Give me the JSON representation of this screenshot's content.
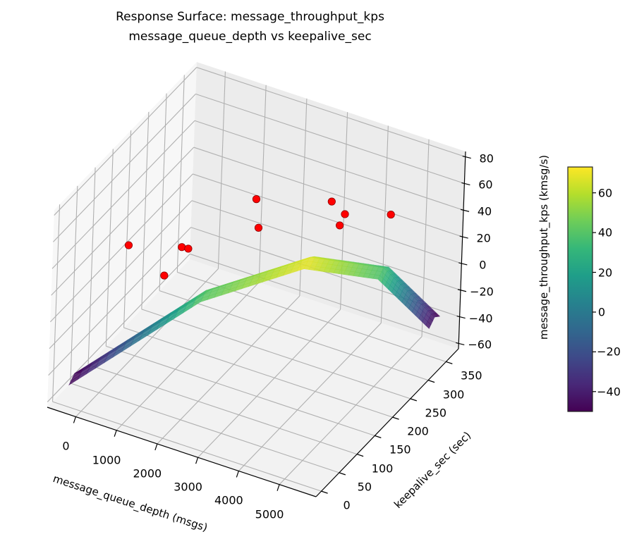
{
  "chart_data": {
    "type": "surface3d",
    "title": "Response Surface: message_throughput_kps",
    "subtitle": "message_queue_depth vs keepalive_sec",
    "xlabel": "message_queue_depth (msgs)",
    "ylabel": "keepalive_sec (sec)",
    "zlabel": "message_throughput_kps (kmsg/s)",
    "xlim": [
      -700,
      5900
    ],
    "ylim": [
      -15,
      385
    ],
    "zlim": [
      -64,
      84
    ],
    "grid": true,
    "x_ticks": [
      "0",
      "1000",
      "2000",
      "3000",
      "4000",
      "5000"
    ],
    "y_ticks": [
      "0",
      "50",
      "100",
      "150",
      "200",
      "250",
      "300",
      "350"
    ],
    "z_ticks": [
      "−60",
      "−40",
      "−20",
      "0",
      "20",
      "40",
      "60",
      "80"
    ],
    "colorbar": {
      "colormap": "viridis",
      "range": [
        -50,
        73
      ],
      "ticks": [
        "−40",
        "−20",
        "0",
        "20",
        "40",
        "60"
      ]
    },
    "surface_ridge": [
      {
        "x": -475,
        "y": 34,
        "z": -50
      },
      {
        "x": 2551,
        "y": 45,
        "z": 40
      },
      {
        "x": 4527,
        "y": 106,
        "z": 68
      },
      {
        "x": 5400,
        "y": 218,
        "z": 38
      },
      {
        "x": 5326,
        "y": 381,
        "z": -45
      }
    ],
    "points": [
      {
        "x": 303,
        "y": 85,
        "z": 40
      },
      {
        "x": 818,
        "y": 130,
        "z": 10
      },
      {
        "x": 1095,
        "y": 145,
        "z": 30
      },
      {
        "x": 1128,
        "y": 160,
        "z": 25
      },
      {
        "x": 2197,
        "y": 225,
        "z": 55
      },
      {
        "x": 2290,
        "y": 223,
        "z": 35
      },
      {
        "x": 3412,
        "y": 299,
        "z": 45
      },
      {
        "x": 3768,
        "y": 296,
        "z": 40
      },
      {
        "x": 3643,
        "y": 297,
        "z": 30
      },
      {
        "x": 4976,
        "y": 285,
        "z": 55
      }
    ],
    "point_color": "#ff0000"
  }
}
